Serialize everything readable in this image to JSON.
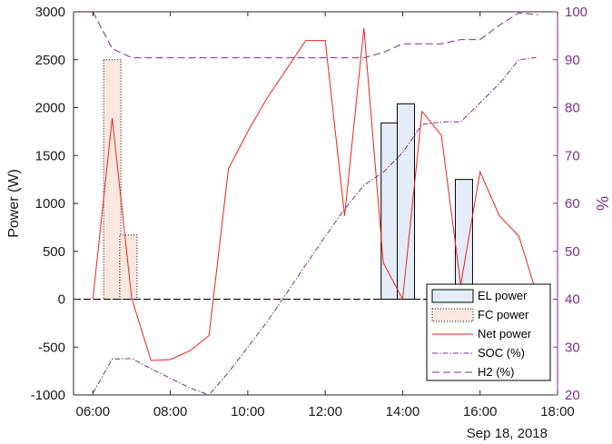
{
  "chart_data": {
    "type": "bar",
    "ylabel_left": "Power (W)",
    "ylabel_right": "%",
    "date_label": "Sep 18, 2018",
    "x_ticks": [
      "06:00",
      "08:00",
      "10:00",
      "12:00",
      "14:00",
      "16:00",
      "18:00"
    ],
    "x_range_hours": [
      5.5,
      18.0
    ],
    "ylim_left": [
      -1000,
      3000
    ],
    "y_ticks_left": [
      "-1000",
      "-500",
      "0",
      "500",
      "1000",
      "1500",
      "2000",
      "2500",
      "3000"
    ],
    "ylim_right": [
      20,
      100
    ],
    "y_ticks_right": [
      "20",
      "30",
      "40",
      "50",
      "60",
      "70",
      "80",
      "90",
      "100"
    ],
    "grid": false,
    "legend_position": "bottom-right",
    "colors": {
      "el_fill": "#e3ecf7",
      "el_edge": "#000000",
      "fc_fill": "#fae8e0",
      "fc_edge": "#000000",
      "net": "#e8241c",
      "soc": "#7e2f8e",
      "h2": "#7e2f8e",
      "right_axis": "#7e2f8e"
    },
    "legend": [
      {
        "label": "EL power",
        "kind": "el"
      },
      {
        "label": "FC power",
        "kind": "fc"
      },
      {
        "label": "Net power",
        "kind": "net"
      },
      {
        "label": "SOC (%)",
        "kind": "soc"
      },
      {
        "label": "H2 (%)",
        "kind": "h2"
      }
    ],
    "fc_power": [
      {
        "time": "06:30",
        "value": 2500
      },
      {
        "time": "06:55",
        "value": 670
      }
    ],
    "el_power": [
      {
        "time": "13:40",
        "value": 1840
      },
      {
        "time": "14:05",
        "value": 2040
      },
      {
        "time": "15:35",
        "value": 1250
      }
    ],
    "net_power": {
      "x": [
        "06:00",
        "06:30",
        "07:00",
        "07:30",
        "08:00",
        "08:30",
        "09:00",
        "09:30",
        "10:00",
        "10:30",
        "11:00",
        "11:30",
        "12:00",
        "12:30",
        "13:00",
        "13:30",
        "14:00",
        "14:30",
        "15:00",
        "15:30",
        "16:00",
        "16:30",
        "17:00",
        "17:30"
      ],
      "y": [
        0,
        1890,
        10,
        -640,
        -630,
        -540,
        -380,
        1360,
        1750,
        2100,
        2400,
        2700,
        2700,
        870,
        2830,
        380,
        0,
        1960,
        1710,
        150,
        1330,
        870,
        660,
        0
      ]
    },
    "soc": {
      "x": [
        "06:00",
        "06:30",
        "07:00",
        "07:30",
        "08:00",
        "08:30",
        "09:00",
        "09:30",
        "10:00",
        "10:30",
        "11:00",
        "11:30",
        "12:00",
        "12:30",
        "13:00",
        "13:30",
        "14:00",
        "14:30",
        "15:00",
        "15:30",
        "16:00",
        "16:30",
        "17:00",
        "17:30"
      ],
      "y": [
        20.4,
        27.5,
        27.6,
        25.5,
        23.5,
        21.5,
        20.0,
        24.7,
        30.0,
        35.3,
        41.2,
        47.2,
        53.1,
        58.8,
        63.8,
        66.5,
        70.6,
        76.5,
        77.0,
        77.0,
        81.0,
        85.0,
        90.0,
        90.5
      ]
    },
    "h2": {
      "x": [
        "06:00",
        "06:30",
        "07:00",
        "07:30",
        "08:00",
        "08:30",
        "09:00",
        "09:30",
        "10:00",
        "10:30",
        "11:00",
        "11:30",
        "12:00",
        "12:30",
        "13:00",
        "13:30",
        "14:00",
        "14:30",
        "15:00",
        "15:30",
        "16:00",
        "16:30",
        "17:00",
        "17:30"
      ],
      "y": [
        100,
        92.3,
        90.4,
        90.4,
        90.4,
        90.4,
        90.4,
        90.4,
        90.4,
        90.4,
        90.4,
        90.4,
        90.4,
        90.4,
        90.4,
        91.5,
        93.3,
        93.3,
        93.3,
        94.2,
        94.2,
        97.2,
        99.8,
        99.4
      ]
    }
  }
}
